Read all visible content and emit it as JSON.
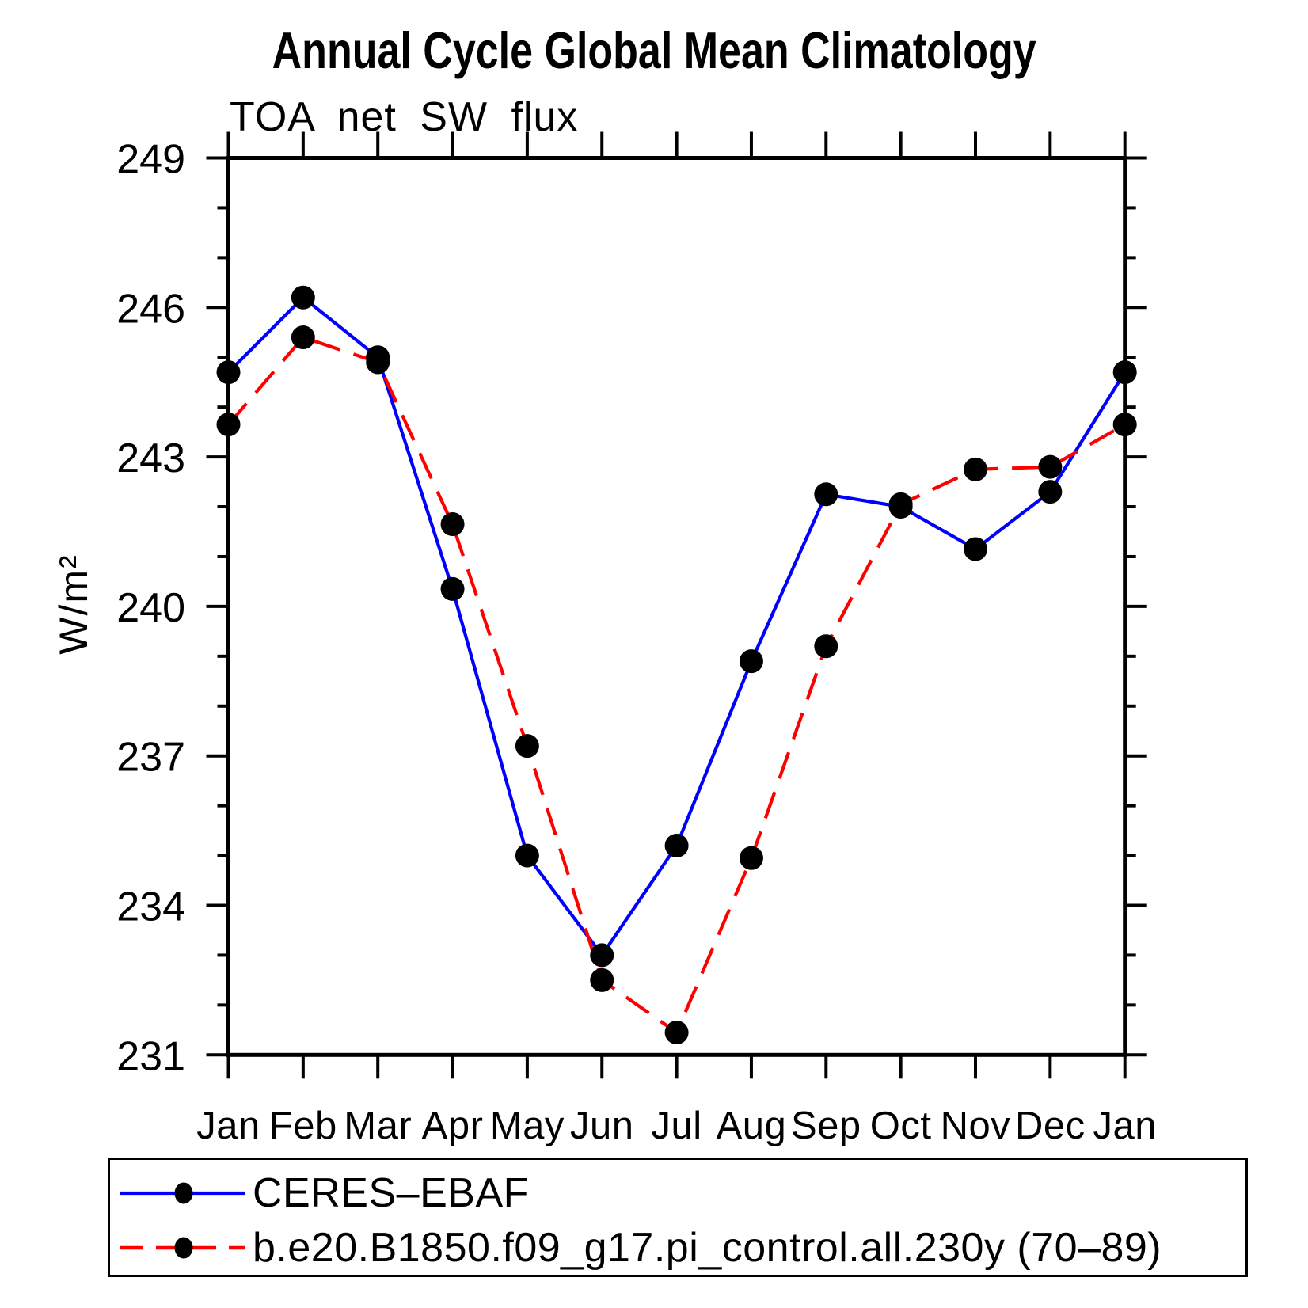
{
  "page": {
    "background": "#ffffff"
  },
  "header": {
    "title": "Annual Cycle Global Mean Climatology",
    "subtitle": "TOA net SW flux"
  },
  "y_axis_label": "W/m²",
  "chart_data": {
    "type": "line",
    "title": "Annual Cycle Global Mean Climatology",
    "subtitle": "TOA net SW flux",
    "ylabel": "W/m²",
    "xlabel": "",
    "categories": [
      "Jan",
      "Feb",
      "Mar",
      "Apr",
      "May",
      "Jun",
      "Jul",
      "Aug",
      "Sep",
      "Oct",
      "Nov",
      "Dec",
      "Jan"
    ],
    "ylim": [
      231,
      249
    ],
    "yticks_major": [
      231,
      234,
      237,
      240,
      243,
      246,
      249
    ],
    "ytick_minor_step": 1,
    "grid": false,
    "legend_position": "bottom-left-box",
    "series": [
      {
        "name": "CERES–EBAF",
        "color": "#0000ff",
        "line_style": "solid",
        "marker": "filled-circle",
        "marker_color": "#000000",
        "values": [
          244.7,
          246.2,
          245.0,
          240.35,
          235.0,
          233.0,
          235.2,
          238.9,
          242.25,
          242.0,
          241.15,
          242.3,
          244.7
        ]
      },
      {
        "name": "b.e20.B1850.f09_g17.pi_control.all.230y (70–89)",
        "color": "#ff0000",
        "line_style": "dashed",
        "marker": "filled-circle",
        "marker_color": "#000000",
        "values": [
          243.65,
          245.4,
          244.9,
          241.65,
          237.2,
          232.5,
          231.45,
          234.95,
          239.2,
          242.05,
          242.75,
          242.8,
          243.65
        ]
      }
    ]
  }
}
